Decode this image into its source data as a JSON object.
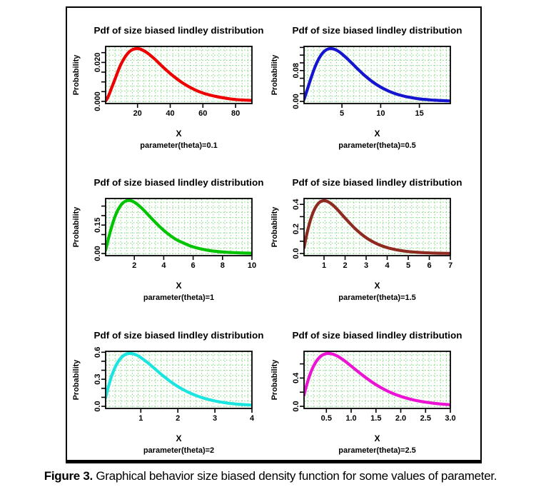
{
  "figure": {
    "caption": {
      "label": "Figure 3.",
      "text": "Graphical behavior size biased density function for some values of parameter."
    }
  },
  "grid": {
    "color": "#70d470",
    "style": "dotted"
  },
  "chart_data": [
    {
      "type": "line",
      "title": "Pdf of size biased lindley distribution",
      "xlabel": "X",
      "ylabel": "Probability",
      "param_label": "parameter(theta)=0.1",
      "theta": 0.1,
      "color": "#ee0000",
      "x_domain": [
        0.5,
        90
      ],
      "y_domain": [
        -0.0011,
        0.0282
      ],
      "x_ticks": [
        {
          "v": 20,
          "t": "20"
        },
        {
          "v": 40,
          "t": "40"
        },
        {
          "v": 60,
          "t": "60"
        },
        {
          "v": 80,
          "t": "80"
        }
      ],
      "y_ticks": [
        {
          "v": 0,
          "t": "0.000"
        },
        {
          "v": 0.005
        },
        {
          "v": 0.01
        },
        {
          "v": 0.015
        },
        {
          "v": 0.02,
          "t": "0.020"
        },
        {
          "v": 0.025
        }
      ],
      "points": [
        [
          0.5,
          0.0003
        ],
        [
          2,
          0.0023
        ],
        [
          5,
          0.0087
        ],
        [
          10,
          0.0193
        ],
        [
          15,
          0.0255
        ],
        [
          20,
          0.0271
        ],
        [
          25,
          0.0254
        ],
        [
          30,
          0.0221
        ],
        [
          35,
          0.0181
        ],
        [
          40,
          0.0143
        ],
        [
          45,
          0.011
        ],
        [
          50,
          0.0082
        ],
        [
          55,
          0.006
        ],
        [
          60,
          0.0043
        ],
        [
          65,
          0.0031
        ],
        [
          70,
          0.0022
        ],
        [
          75,
          0.0015
        ],
        [
          80,
          0.001
        ],
        [
          85,
          0.0007
        ],
        [
          90,
          0.0005
        ]
      ]
    },
    {
      "type": "line",
      "title": "Pdf of size biased lindley distribution",
      "xlabel": "X",
      "ylabel": "Probability",
      "param_label": "parameter(theta)=0.5",
      "theta": 0.5,
      "color": "#1515d0",
      "x_domain": [
        0.1,
        19
      ],
      "y_domain": [
        -0.0055,
        0.1425
      ],
      "x_ticks": [
        {
          "v": 5,
          "t": "5"
        },
        {
          "v": 10,
          "t": "10"
        },
        {
          "v": 15,
          "t": "15"
        }
      ],
      "y_ticks": [
        {
          "v": 0,
          "t": "0.00"
        },
        {
          "v": 0.02
        },
        {
          "v": 0.04
        },
        {
          "v": 0.06
        },
        {
          "v": 0.08,
          "t": "0.08"
        },
        {
          "v": 0.1
        },
        {
          "v": 0.12
        },
        {
          "v": 0.14
        }
      ],
      "points": [
        [
          0.1,
          0.0052
        ],
        [
          0.5,
          0.0292
        ],
        [
          1,
          0.0607
        ],
        [
          1.5,
          0.0886
        ],
        [
          2,
          0.1104
        ],
        [
          2.5,
          0.1254
        ],
        [
          3,
          0.1339
        ],
        [
          3.5,
          0.1369
        ],
        [
          4,
          0.1353
        ],
        [
          4.5,
          0.1304
        ],
        [
          5,
          0.1231
        ],
        [
          6,
          0.1046
        ],
        [
          7,
          0.0846
        ],
        [
          8,
          0.0659
        ],
        [
          9,
          0.05
        ],
        [
          10,
          0.0371
        ],
        [
          11,
          0.027
        ],
        [
          12,
          0.0193
        ],
        [
          13,
          0.0137
        ],
        [
          14,
          0.0096
        ],
        [
          15,
          0.0066
        ],
        [
          16,
          0.0046
        ],
        [
          17,
          0.0031
        ],
        [
          18,
          0.0021
        ],
        [
          19,
          0.0014
        ]
      ]
    },
    {
      "type": "line",
      "title": "Pdf of size biased lindley distribution",
      "xlabel": "X",
      "ylabel": "Probability",
      "param_label": "parameter(theta)=1",
      "theta": 1,
      "color": "#00c400",
      "x_domain": [
        0.05,
        10
      ],
      "y_domain": [
        -0.0112,
        0.29
      ],
      "x_ticks": [
        {
          "v": 2,
          "t": "2"
        },
        {
          "v": 4,
          "t": "4"
        },
        {
          "v": 6,
          "t": "6"
        },
        {
          "v": 8,
          "t": "8"
        },
        {
          "v": 10,
          "t": "10"
        }
      ],
      "y_ticks": [
        {
          "v": 0,
          "t": "0.00"
        },
        {
          "v": 0.05
        },
        {
          "v": 0.1
        },
        {
          "v": 0.15,
          "t": "0.15"
        },
        {
          "v": 0.2
        },
        {
          "v": 0.25
        }
      ],
      "points": [
        [
          0.05,
          0.0167
        ],
        [
          0.25,
          0.0811
        ],
        [
          0.5,
          0.1516
        ],
        [
          0.75,
          0.2067
        ],
        [
          1,
          0.2453
        ],
        [
          1.25,
          0.2686
        ],
        [
          1.5,
          0.2789
        ],
        [
          1.75,
          0.2788
        ],
        [
          2,
          0.2707
        ],
        [
          2.5,
          0.2394
        ],
        [
          3,
          0.1992
        ],
        [
          3.5,
          0.1585
        ],
        [
          4,
          0.1221
        ],
        [
          4.5,
          0.0917
        ],
        [
          5,
          0.0674
        ],
        [
          6,
          0.0347
        ],
        [
          7,
          0.017
        ],
        [
          8,
          0.0081
        ],
        [
          9,
          0.0037
        ],
        [
          10,
          0.0017
        ]
      ]
    },
    {
      "type": "line",
      "title": "Pdf of size biased lindley distribution",
      "xlabel": "X",
      "ylabel": "Probability",
      "param_label": "parameter(theta)=1.5",
      "theta": 1.5,
      "color": "#8e2a20",
      "x_domain": [
        0.05,
        7
      ],
      "y_domain": [
        -0.0172,
        0.4475
      ],
      "x_ticks": [
        {
          "v": 1,
          "t": "1"
        },
        {
          "v": 2,
          "t": "2"
        },
        {
          "v": 3,
          "t": "3"
        },
        {
          "v": 4,
          "t": "4"
        },
        {
          "v": 5,
          "t": "5"
        },
        {
          "v": 6,
          "t": "6"
        },
        {
          "v": 7,
          "t": "7"
        }
      ],
      "y_ticks": [
        {
          "v": 0,
          "t": "0.0"
        },
        {
          "v": 0.1
        },
        {
          "v": 0.2,
          "t": "0.2"
        },
        {
          "v": 0.3
        },
        {
          "v": 0.4,
          "t": "0.4"
        }
      ],
      "points": [
        [
          0.05,
          0.047
        ],
        [
          0.2,
          0.1714
        ],
        [
          0.4,
          0.2963
        ],
        [
          0.6,
          0.3764
        ],
        [
          0.8,
          0.4182
        ],
        [
          1,
          0.4303
        ],
        [
          1.2,
          0.4208
        ],
        [
          1.4,
          0.3968
        ],
        [
          1.6,
          0.3639
        ],
        [
          1.8,
          0.3267
        ],
        [
          2,
          0.2881
        ],
        [
          2.5,
          0.1984
        ],
        [
          3,
          0.1286
        ],
        [
          3.5,
          0.0797
        ],
        [
          4,
          0.0478
        ],
        [
          4.5,
          0.0279
        ],
        [
          5,
          0.016
        ],
        [
          5.5,
          0.009
        ],
        [
          6,
          0.005
        ],
        [
          6.5,
          0.0027
        ],
        [
          7,
          0.0015
        ]
      ]
    },
    {
      "type": "line",
      "title": "Pdf of size biased lindley distribution",
      "xlabel": "X",
      "ylabel": "Probability",
      "param_label": "parameter(theta)=2",
      "theta": 2,
      "color": "#1ae5e0",
      "x_domain": [
        0.05,
        4
      ],
      "y_domain": [
        -0.0235,
        0.61
      ],
      "x_ticks": [
        {
          "v": 1,
          "t": "1"
        },
        {
          "v": 2,
          "t": "2"
        },
        {
          "v": 3,
          "t": "3"
        },
        {
          "v": 4,
          "t": "4"
        }
      ],
      "y_ticks": [
        {
          "v": 0,
          "t": "0.0"
        },
        {
          "v": 0.1
        },
        {
          "v": 0.2
        },
        {
          "v": 0.3,
          "t": "0.3"
        },
        {
          "v": 0.4
        },
        {
          "v": 0.5
        },
        {
          "v": 0.6,
          "t": "0.6"
        }
      ],
      "points": [
        [
          0.05,
          0.095
        ],
        [
          0.1,
          0.1801
        ],
        [
          0.2,
          0.3218
        ],
        [
          0.3,
          0.4281
        ],
        [
          0.4,
          0.5032
        ],
        [
          0.5,
          0.5518
        ],
        [
          0.6,
          0.5783
        ],
        [
          0.7,
          0.5869
        ],
        [
          0.8,
          0.5815
        ],
        [
          0.9,
          0.5653
        ],
        [
          1,
          0.5413
        ],
        [
          1.2,
          0.479
        ],
        [
          1.4,
          0.4086
        ],
        [
          1.6,
          0.3391
        ],
        [
          1.8,
          0.2754
        ],
        [
          2,
          0.2198
        ],
        [
          2.25,
          0.1625
        ],
        [
          2.5,
          0.1179
        ],
        [
          2.75,
          0.0843
        ],
        [
          3,
          0.0595
        ],
        [
          3.25,
          0.0415
        ],
        [
          3.5,
          0.0287
        ],
        [
          3.75,
          0.0197
        ],
        [
          4,
          0.0134
        ]
      ]
    },
    {
      "type": "line",
      "title": "Pdf of size biased lindley distribution",
      "xlabel": "X",
      "ylabel": "Probability",
      "param_label": "parameter(theta)=2.5",
      "theta": 2.5,
      "color": "#ec13d4",
      "x_domain": [
        0.05,
        3
      ],
      "y_domain": [
        -0.03,
        0.778
      ],
      "x_ticks": [
        {
          "v": 0.5,
          "t": "0.5"
        },
        {
          "v": 1,
          "t": "1.0"
        },
        {
          "v": 1.5,
          "t": "1.5"
        },
        {
          "v": 2,
          "t": "2.0"
        },
        {
          "v": 2.5,
          "t": "2.5"
        },
        {
          "v": 3,
          "t": "3.0"
        }
      ],
      "y_ticks": [
        {
          "v": 0,
          "t": "0.0"
        },
        {
          "v": 0.2
        },
        {
          "v": 0.4,
          "t": "0.4"
        },
        {
          "v": 0.6
        }
      ],
      "points": [
        [
          0.05,
          0.1609
        ],
        [
          0.1,
          0.2975
        ],
        [
          0.2,
          0.5054
        ],
        [
          0.3,
          0.6397
        ],
        [
          0.4,
          0.7153
        ],
        [
          0.5,
          0.7461
        ],
        [
          0.6,
          0.7438
        ],
        [
          0.7,
          0.718
        ],
        [
          0.8,
          0.6767
        ],
        [
          0.9,
          0.6258
        ],
        [
          1,
          0.57
        ],
        [
          1.2,
          0.4564
        ],
        [
          1.4,
          0.3523
        ],
        [
          1.6,
          0.2646
        ],
        [
          1.8,
          0.1944
        ],
        [
          2,
          0.1404
        ],
        [
          2.2,
          0.0999
        ],
        [
          2.4,
          0.0702
        ],
        [
          2.6,
          0.0489
        ],
        [
          2.8,
          0.0337
        ],
        [
          3,
          0.023
        ]
      ]
    }
  ]
}
